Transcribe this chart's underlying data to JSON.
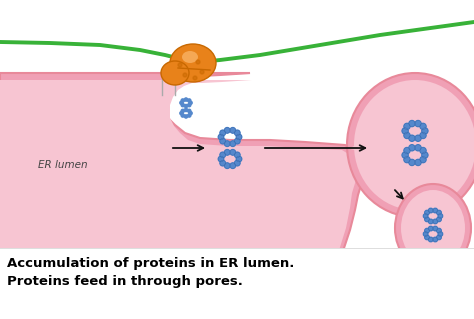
{
  "bg_color": "#ffffff",
  "er_outer_color": "#e8899a",
  "er_fill": "#f0a0b5",
  "er_inner_color": "#f7c5d2",
  "protein_color": "#5588cc",
  "protein_outline": "#3366aa",
  "orange_color": "#e8821a",
  "orange_dark": "#c86800",
  "green_color": "#22aa22",
  "arrow_color": "#111111",
  "text_er_lumen": "ER lumen",
  "caption_line1": "Accumulation of proteins in ER lumen.",
  "caption_line2": "Proteins feed in through pores.",
  "fig_width": 4.74,
  "fig_height": 3.19
}
